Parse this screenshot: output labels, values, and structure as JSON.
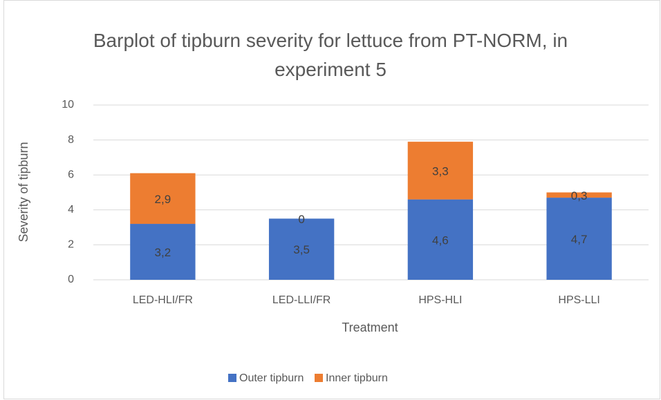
{
  "chart_data": {
    "type": "stacked_bar",
    "title": "Barplot of tipburn severity for lettuce from PT-NORM, in experiment 5",
    "x_label": "Treatment",
    "y_label": "Severity of tipburn",
    "categories": [
      "LED-HLI/FR",
      "LED-LLI/FR",
      "HPS-HLI",
      "HPS-LLI"
    ],
    "series": [
      {
        "name": "Outer tipburn",
        "color": "#4472c4",
        "values": [
          3.2,
          3.5,
          4.6,
          4.7
        ],
        "value_labels": [
          "3,2",
          "3,5",
          "4,6",
          "4,7"
        ]
      },
      {
        "name": "Inner tipburn",
        "color": "#ed7d31",
        "values": [
          2.9,
          0,
          3.3,
          0.3
        ],
        "value_labels": [
          "2,9",
          "0",
          "3,3",
          "0,3"
        ]
      }
    ],
    "ylim": [
      0,
      10
    ],
    "yticks": [
      0,
      2,
      4,
      6,
      8,
      10
    ],
    "grid": true,
    "legend": "bottom"
  }
}
